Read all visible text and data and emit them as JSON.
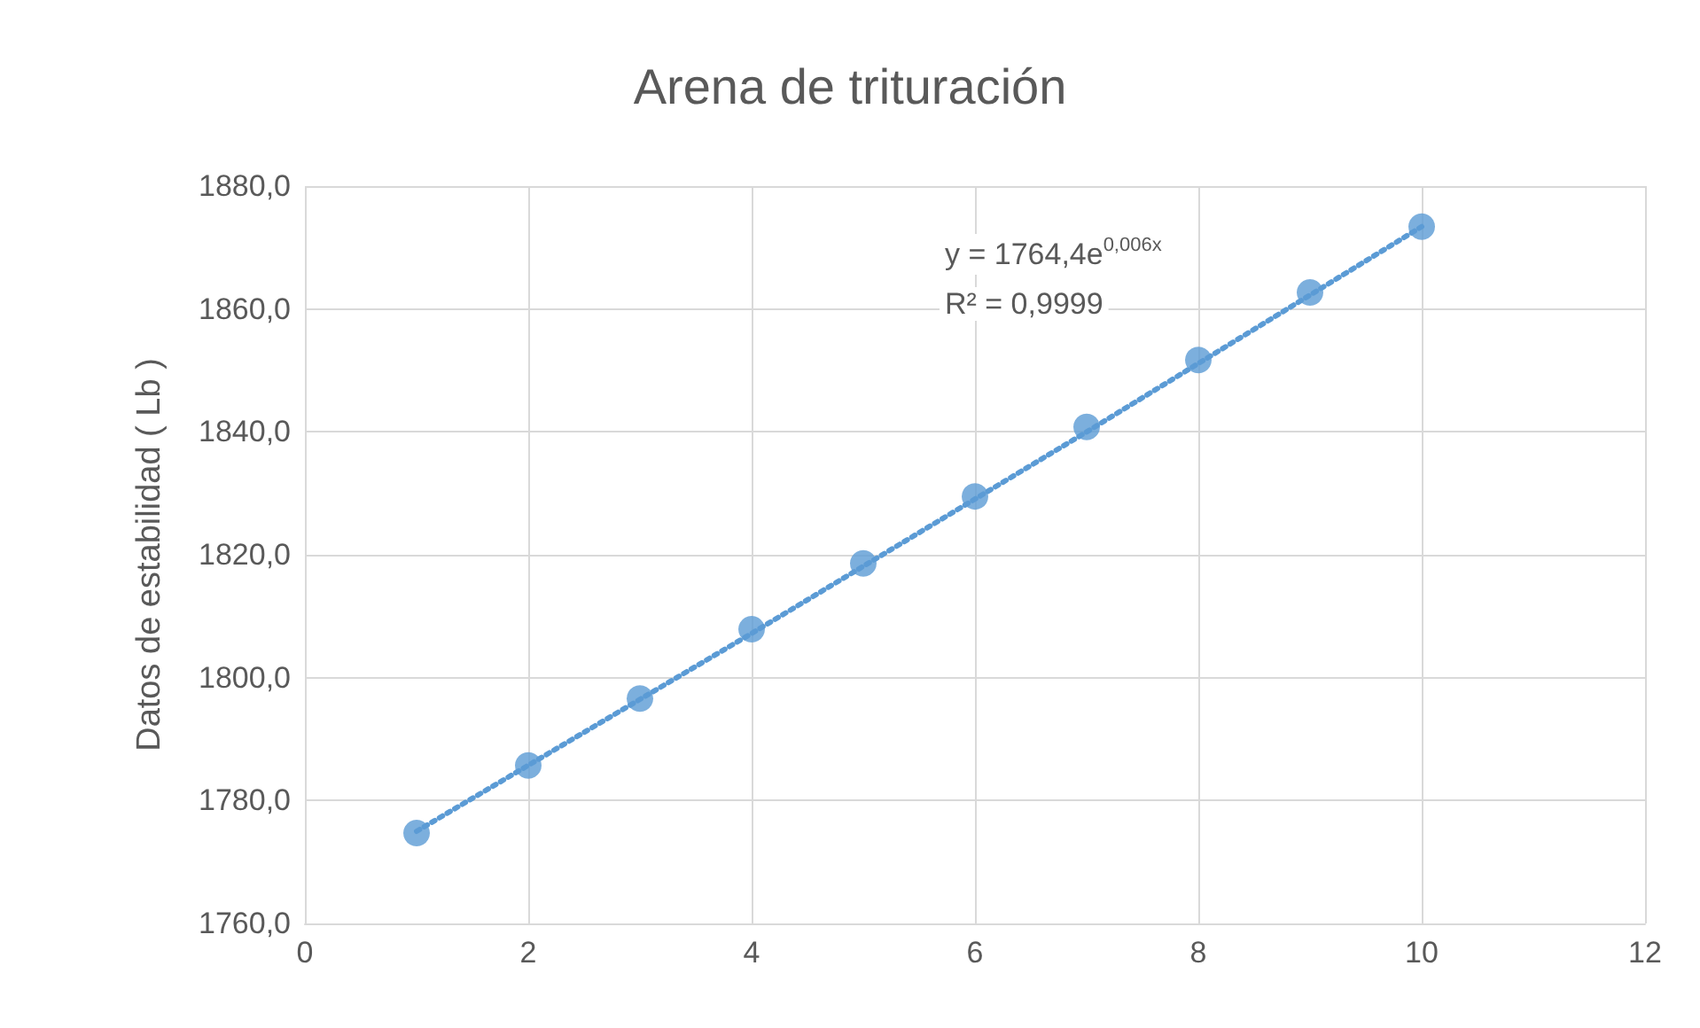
{
  "chart_data": {
    "type": "scatter",
    "title": "Arena de trituración",
    "ylabel": "Datos de estabilidad ( Lb )",
    "x": [
      1,
      2,
      3,
      4,
      5,
      6,
      7,
      8,
      9,
      10
    ],
    "series": [
      {
        "color": "#5b9bd5",
        "values": [
          1774.7,
          1785.7,
          1796.6,
          1807.9,
          1818.6,
          1829.5,
          1840.8,
          1851.7,
          1862.7,
          1873.4
        ],
        "marker": "circle"
      },
      {
        "type": "line",
        "color": "#5b9bd5",
        "x": [
          1,
          4,
          7,
          10
        ],
        "values": [
          1775.0,
          1807.2,
          1840.0,
          1873.4
        ],
        "marker": "none",
        "line_style": "dotted"
      }
    ],
    "xlim": [
      0,
      12
    ],
    "xticks": [
      0,
      2,
      4,
      6,
      8,
      10,
      12
    ],
    "ylim": [
      1760,
      1880
    ],
    "yticks": [
      {
        "value": 1760,
        "label": "1760,0"
      },
      {
        "value": 1780,
        "label": "1780,0"
      },
      {
        "value": 1800,
        "label": "1800,0"
      },
      {
        "value": 1820,
        "label": "1820,0"
      },
      {
        "value": 1840,
        "label": "1840,0"
      },
      {
        "value": 1860,
        "label": "1860,0"
      },
      {
        "value": 1880,
        "label": "1880,0"
      }
    ],
    "annotations": [
      "y = 1764,4e$^{0,006x}$",
      "R² = 0,9999"
    ],
    "grid": true
  }
}
